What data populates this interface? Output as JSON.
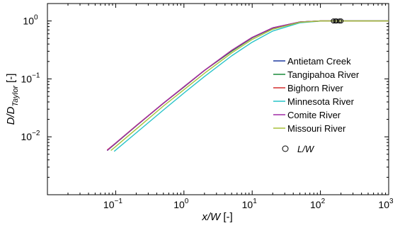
{
  "chart_data": {
    "type": "line",
    "x_scale": "log",
    "y_scale": "log",
    "xlim": [
      0.01,
      1000
    ],
    "ylim": [
      0.001,
      2
    ],
    "xlabel": {
      "var": "x/W",
      "unit": "[-]"
    },
    "ylabel": {
      "main": "D/D",
      "sub": "Taylor",
      "unit": "[-]"
    },
    "xticks": [
      {
        "value": 0.1,
        "base": "10",
        "exp": "−1"
      },
      {
        "value": 1,
        "base": "10",
        "exp": "0"
      },
      {
        "value": 10,
        "base": "10",
        "exp": "1"
      },
      {
        "value": 100,
        "base": "10",
        "exp": "2"
      },
      {
        "value": 1000,
        "base": "10",
        "exp": "3"
      }
    ],
    "yticks": [
      {
        "value": 0.01,
        "base": "10",
        "exp": "−2"
      },
      {
        "value": 0.1,
        "base": "10",
        "exp": "−1"
      },
      {
        "value": 1,
        "base": "10",
        "exp": "0"
      }
    ],
    "grid": false,
    "legend_position": "right",
    "series": [
      {
        "name": "Antietam Creek",
        "color": "#1f3a9f",
        "x": [
          0.075,
          0.1,
          0.2,
          0.5,
          1,
          2,
          5,
          10,
          20,
          50,
          100,
          200,
          500,
          1000
        ],
        "y": [
          0.0058,
          0.0077,
          0.0155,
          0.038,
          0.073,
          0.14,
          0.31,
          0.52,
          0.76,
          0.96,
          1.0,
          1.0,
          1.0,
          1.0
        ]
      },
      {
        "name": "Tangipahoa River",
        "color": "#1a8a3a",
        "x": [
          0.075,
          0.1,
          0.2,
          0.5,
          1,
          2,
          5,
          10,
          20,
          50,
          100,
          200,
          500,
          1000
        ],
        "y": [
          0.0058,
          0.0077,
          0.0154,
          0.038,
          0.072,
          0.14,
          0.3,
          0.51,
          0.75,
          0.96,
          1.0,
          1.0,
          1.0,
          1.0
        ]
      },
      {
        "name": "Bighorn River",
        "color": "#d32f2f",
        "x": [
          0.075,
          0.1,
          0.2,
          0.5,
          1,
          2,
          5,
          10,
          20,
          50,
          100,
          200,
          500,
          1000
        ],
        "y": [
          0.0059,
          0.0078,
          0.0156,
          0.038,
          0.073,
          0.14,
          0.31,
          0.52,
          0.76,
          0.96,
          1.0,
          1.0,
          1.0,
          1.0
        ]
      },
      {
        "name": "Minnesota River",
        "color": "#27c3c8",
        "x": [
          0.095,
          0.1,
          0.2,
          0.5,
          1,
          2,
          5,
          10,
          20,
          50,
          100,
          200,
          500,
          1000
        ],
        "y": [
          0.0056,
          0.0059,
          0.0117,
          0.029,
          0.057,
          0.11,
          0.25,
          0.43,
          0.67,
          0.93,
          0.995,
          1.0,
          1.0,
          1.0
        ]
      },
      {
        "name": "Comite River",
        "color": "#a12ba6",
        "x": [
          0.075,
          0.1,
          0.2,
          0.5,
          1,
          2,
          5,
          10,
          20,
          50,
          100,
          200,
          500,
          1000
        ],
        "y": [
          0.0058,
          0.0078,
          0.0155,
          0.038,
          0.073,
          0.14,
          0.31,
          0.52,
          0.76,
          0.96,
          1.0,
          1.0,
          1.0,
          1.0
        ]
      },
      {
        "name": "Missouri River",
        "color": "#a8c03a",
        "x": [
          0.085,
          0.1,
          0.2,
          0.5,
          1,
          2,
          5,
          10,
          20,
          50,
          100,
          200,
          500,
          1000
        ],
        "y": [
          0.0058,
          0.0068,
          0.0136,
          0.034,
          0.065,
          0.125,
          0.28,
          0.48,
          0.72,
          0.95,
          1.0,
          1.0,
          1.0,
          1.0
        ]
      }
    ],
    "markers": {
      "name": "L/W",
      "symbol": "circle-open",
      "color": "#000000",
      "points": [
        {
          "x": 155,
          "y": 1.0
        },
        {
          "x": 165,
          "y": 1.0
        },
        {
          "x": 172,
          "y": 1.0
        },
        {
          "x": 190,
          "y": 1.0
        },
        {
          "x": 200,
          "y": 1.0
        }
      ]
    }
  }
}
